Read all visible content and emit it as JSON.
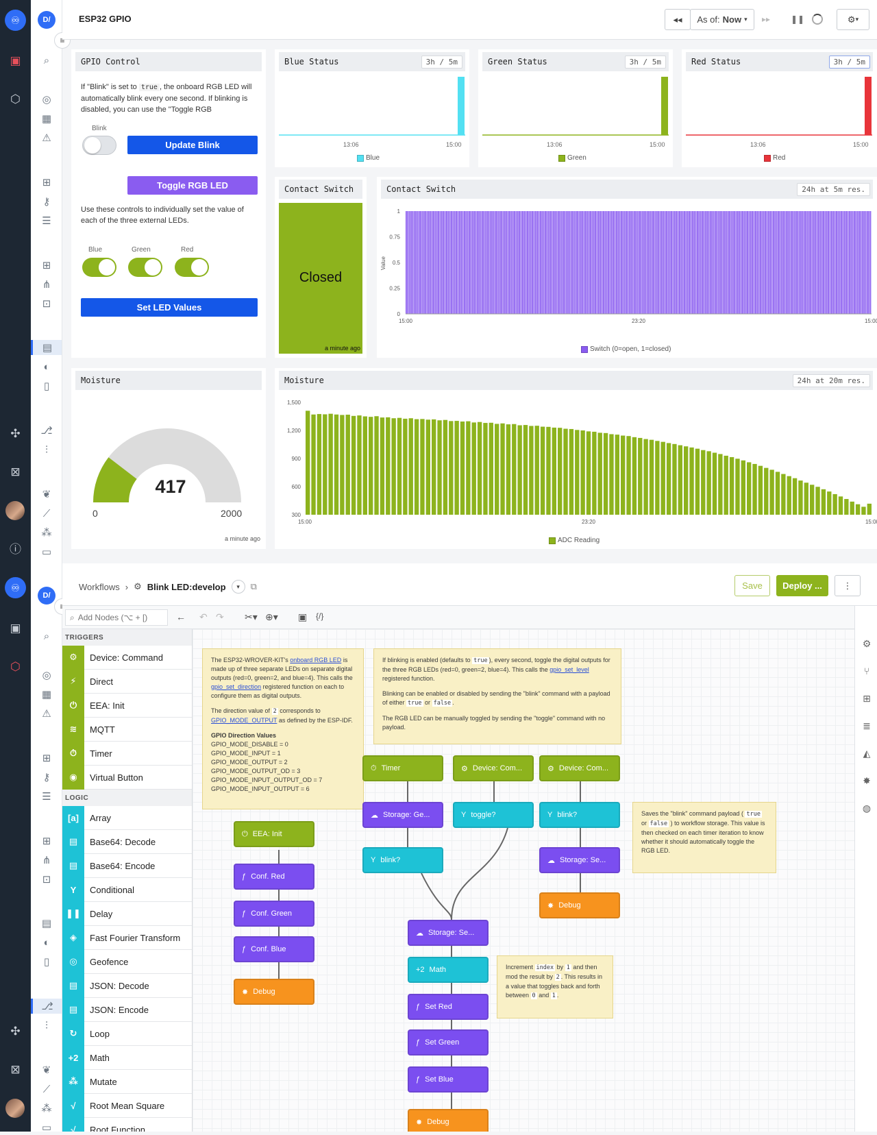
{
  "app": {
    "logo_glyph": "♾",
    "user_initials": "D/"
  },
  "header": {
    "title": "ESP32 GPIO",
    "as_of_label": "As of:",
    "as_of_value": "Now",
    "rewind_icon": "rewind-icon",
    "forward_icon": "fast-forward-icon",
    "pause_icon": "pause-icon",
    "refresh_icon": "spinner-icon",
    "settings_icon": "gear-icon"
  },
  "gpio_control": {
    "title": "GPIO Control",
    "desc_prefix": "If \"Blink\" is set to",
    "desc_code": "true",
    "desc_suffix": ", the onboard RGB LED will automatically blink every one second. If blinking is disabled, you can use the \"Toggle RGB",
    "blink_label": "Blink",
    "blink_on": false,
    "update_blink": "Update Blink",
    "toggle_rgb": "Toggle RGB LED",
    "desc2": "Use these controls to individually set the value of each of the three external LEDs.",
    "leds": [
      {
        "label": "Blue",
        "on": true
      },
      {
        "label": "Green",
        "on": true
      },
      {
        "label": "Red",
        "on": true
      }
    ],
    "set_led": "Set LED Values"
  },
  "status_panels": [
    {
      "title": "Blue Status",
      "range": "3h / 5m",
      "x_ticks": [
        "13:06",
        "15:00"
      ],
      "legend": "Blue",
      "color": "#53e0f2"
    },
    {
      "title": "Green Status",
      "range": "3h / 5m",
      "x_ticks": [
        "13:06",
        "15:00"
      ],
      "legend": "Green",
      "color": "#8db31d"
    },
    {
      "title": "Red Status",
      "range": "3h / 5m",
      "x_ticks": [
        "13:06",
        "15:00"
      ],
      "legend": "Red",
      "color": "#e8343a"
    }
  ],
  "contact_switch_indicator": {
    "title": "Contact Switch",
    "value": "Closed",
    "time": "a minute ago",
    "color": "#8db31d"
  },
  "contact_switch_chart": {
    "title": "Contact Switch",
    "range": "24h at 5m res.",
    "legend": "Switch (0=open, 1=closed)"
  },
  "moisture_gauge": {
    "title": "Moisture",
    "value": "417",
    "min": "0",
    "max": "2000",
    "time": "a minute ago"
  },
  "moisture_chart": {
    "title": "Moisture",
    "range": "24h at 20m res.",
    "legend": "ADC Reading"
  },
  "chart_data": [
    {
      "type": "line",
      "title": "Blue Status",
      "x_ticks": [
        "13:06",
        "15:00"
      ],
      "series": [
        {
          "name": "Blue",
          "values": [
            0,
            0,
            0,
            0,
            0,
            0,
            0,
            0,
            0,
            0,
            1
          ]
        }
      ]
    },
    {
      "type": "line",
      "title": "Green Status",
      "x_ticks": [
        "13:06",
        "15:00"
      ],
      "series": [
        {
          "name": "Green",
          "values": [
            0,
            0,
            0,
            0,
            0,
            0,
            0,
            0,
            0,
            0,
            1
          ]
        }
      ]
    },
    {
      "type": "line",
      "title": "Red Status",
      "x_ticks": [
        "13:06",
        "15:00"
      ],
      "series": [
        {
          "name": "Red",
          "values": [
            0,
            0,
            0,
            0,
            0,
            0,
            0,
            0,
            0,
            0,
            1
          ]
        }
      ]
    },
    {
      "type": "bar",
      "title": "Contact Switch",
      "ylabel": "Value",
      "ylim": [
        0,
        1
      ],
      "y_ticks": [
        "0",
        "0.25",
        "0.5",
        "0.75",
        "1"
      ],
      "x_ticks": [
        "15:00",
        "23:20",
        "15:00"
      ],
      "bar_count": 288,
      "series": [
        {
          "name": "Switch (0=open, 1=closed)",
          "value": 1
        }
      ]
    },
    {
      "type": "bar",
      "title": "Moisture",
      "ylim": [
        300,
        1500
      ],
      "y_ticks": [
        "300",
        "600",
        "900",
        "1,200",
        "1,500"
      ],
      "x_ticks": [
        "15:00",
        "23:20",
        "15:00"
      ],
      "series": [
        {
          "name": "ADC Reading",
          "values": [
            1410,
            1370,
            1375,
            1372,
            1378,
            1370,
            1365,
            1368,
            1355,
            1360,
            1350,
            1345,
            1352,
            1338,
            1340,
            1330,
            1334,
            1325,
            1330,
            1320,
            1322,
            1315,
            1318,
            1308,
            1312,
            1300,
            1302,
            1295,
            1298,
            1285,
            1290,
            1280,
            1282,
            1270,
            1275,
            1265,
            1268,
            1255,
            1258,
            1248,
            1250,
            1240,
            1238,
            1230,
            1228,
            1218,
            1215,
            1205,
            1200,
            1190,
            1186,
            1175,
            1172,
            1160,
            1155,
            1145,
            1140,
            1128,
            1120,
            1108,
            1100,
            1088,
            1078,
            1065,
            1055,
            1042,
            1030,
            1018,
            1005,
            990,
            978,
            962,
            948,
            930,
            915,
            898,
            880,
            860,
            842,
            822,
            800,
            780,
            758,
            735,
            712,
            690,
            665,
            642,
            620,
            598,
            572,
            548,
            520,
            495,
            468,
            440,
            412,
            385,
            418
          ]
        }
      ]
    }
  ],
  "workflow": {
    "breadcrumb_root": "Workflows",
    "name": "Blink LED:develop",
    "save": "Save",
    "deploy": "Deploy ...",
    "more": "⋮",
    "search_placeholder": "Add Nodes (⌥ + [)"
  },
  "palette": {
    "triggers_label": "TRIGGERS",
    "triggers": [
      {
        "label": "Device: Command",
        "icon": "⚙"
      },
      {
        "label": "Direct",
        "icon": "⚡"
      },
      {
        "label": "EEA: Init",
        "icon": "⏻"
      },
      {
        "label": "MQTT",
        "icon": "≋"
      },
      {
        "label": "Timer",
        "icon": "⏱"
      },
      {
        "label": "Virtual Button",
        "icon": "◉"
      }
    ],
    "logic_label": "LOGIC",
    "logic": [
      {
        "label": "Array",
        "icon": "[a]"
      },
      {
        "label": "Base64: Decode",
        "icon": "▤"
      },
      {
        "label": "Base64: Encode",
        "icon": "▤"
      },
      {
        "label": "Conditional",
        "icon": "Y"
      },
      {
        "label": "Delay",
        "icon": "❚❚"
      },
      {
        "label": "Fast Fourier Transform",
        "icon": "◈"
      },
      {
        "label": "Geofence",
        "icon": "◎"
      },
      {
        "label": "JSON: Decode",
        "icon": "▤"
      },
      {
        "label": "JSON: Encode",
        "icon": "▤"
      },
      {
        "label": "Loop",
        "icon": "↻"
      },
      {
        "label": "Math",
        "icon": "+2"
      },
      {
        "label": "Mutate",
        "icon": "⁂"
      },
      {
        "label": "Root Mean Square",
        "icon": "√"
      },
      {
        "label": "Root Function",
        "icon": "√"
      }
    ]
  },
  "notes": {
    "note1": {
      "p1a": "The ESP32-WROVER-KIT's",
      "p1link": "onboard RGB LED",
      "p1b": "is made up of three separate LEDs on separate digital outputs (red=0, green=2, and blue=4). This calls the",
      "p1link2": "gpio_set_direction",
      "p1c": "registered function on each to configure them as digital outputs.",
      "p2a": "The direction value of",
      "p2code": "2",
      "p2b": "corresponds to",
      "p2link": "GPIO_MODE_OUTPUT",
      "p2c": "as defined by the ESP-IDF.",
      "heading": "GPIO Direction Values",
      "values": [
        "GPIO_MODE_DISABLE = 0",
        "GPIO_MODE_INPUT = 1",
        "GPIO_MODE_OUTPUT = 2",
        "GPIO_MODE_OUTPUT_OD = 3",
        "GPIO_MODE_INPUT_OUTPUT_OD = 7",
        "GPIO_MODE_INPUT_OUTPUT = 6"
      ]
    },
    "note2": {
      "p1a": "If blinking is enabled (defaults to",
      "p1code": "true",
      "p1b": "), every second, toggle the digital outputs for the three RGB LEDs (red=0, green=2, blue=4). This calls the",
      "p1link": "gpio_set_level",
      "p1c": "registered function.",
      "p2a": "Blinking can be enabled or disabled by sending the \"blink\" command with a payload of either",
      "p2code1": "true",
      "p2or": "or",
      "p2code2": "false",
      "p2dot": ".",
      "p3": "The RGB LED can be manually toggled by sending the \"toggle\" command with no payload."
    },
    "note3": {
      "a": "Saves the \"blink\" command payload (",
      "c1": "true",
      "or": "or",
      "c2": "false",
      "b": ") to workflow storage. This value is then checked on each timer iteration to know whether it should automatically toggle the RGB LED."
    },
    "note4": {
      "a": "Increment",
      "c1": "index",
      "b": "by",
      "c2": "1",
      "c": "and then mod the result by",
      "c3": "2",
      "d": ". This results in a value that toggles back and forth between",
      "c4": "0",
      "and": "and",
      "c5": "1",
      "dot": "."
    }
  },
  "nodes": {
    "eea_init": "EEA: Init",
    "conf_red": "Conf. Red",
    "conf_green": "Conf. Green",
    "conf_blue": "Conf. Blue",
    "debug1": "Debug",
    "timer": "Timer",
    "storage_get": "Storage: Ge...",
    "blink_q1": "blink?",
    "device_cmd1": "Device: Com...",
    "toggle_q": "toggle?",
    "device_cmd2": "Device: Com...",
    "blink_q2": "blink?",
    "storage_set2": "Storage: Se...",
    "debug2": "Debug",
    "storage_set1": "Storage: Se...",
    "math": "Math",
    "set_red": "Set Red",
    "set_green": "Set Green",
    "set_blue": "Set Blue",
    "debug3": "Debug"
  }
}
